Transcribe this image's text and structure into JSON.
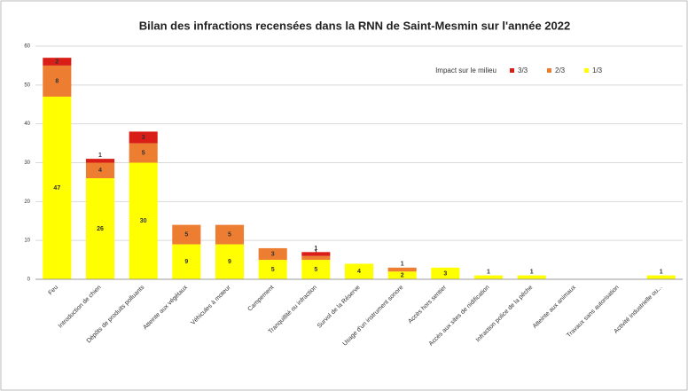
{
  "chart_data": {
    "type": "bar",
    "stacked": true,
    "title": "Bilan des infractions recensées dans la RNN de Saint-Mesmin sur l'année 2022",
    "legend_title": "Impact sur le milieu",
    "legend": "top-right",
    "grid": true,
    "categories": [
      "Feu",
      "Introduction de chien",
      "Dépôts de produits polluants",
      "Atteinte aux végétaux",
      "Véhicules à moteur",
      "Campement",
      "Tranquillité ou infraction",
      "Survol de la Réserve",
      "Usage d'un instrument sonore",
      "Accès hors sentier",
      "Accès aux sites de nidification",
      "Infraction police de la pêche",
      "Atteinte aux animaux",
      "Travaux sans autorisation",
      "Activité industrielle ou..."
    ],
    "series": [
      {
        "name": "3/3",
        "color": "#d91e18",
        "values": [
          2,
          1,
          3,
          0,
          0,
          0,
          1,
          0,
          0,
          0,
          0,
          0,
          0,
          0,
          0
        ]
      },
      {
        "name": "2/3",
        "color": "#ed7d31",
        "values": [
          8,
          4,
          5,
          5,
          5,
          3,
          1,
          0,
          1,
          0,
          0,
          0,
          0,
          0,
          0
        ]
      },
      {
        "name": "1/3",
        "color": "#ffff00",
        "values": [
          47,
          26,
          30,
          9,
          9,
          5,
          5,
          4,
          2,
          3,
          1,
          1,
          0,
          0,
          1
        ]
      }
    ],
    "ylim": [
      0,
      60
    ],
    "yticks": [
      0,
      10,
      20,
      30,
      40,
      50,
      60
    ]
  }
}
